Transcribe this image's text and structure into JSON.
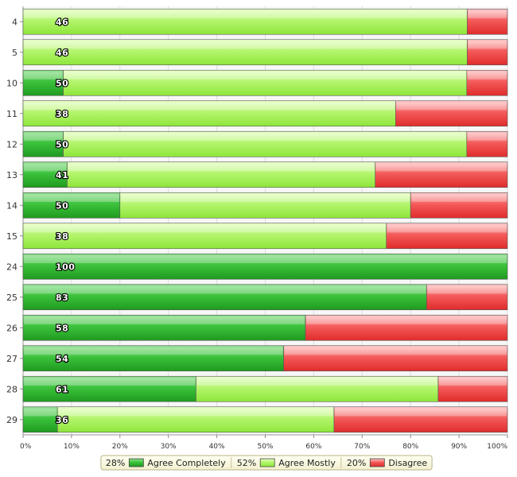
{
  "chart_data": {
    "type": "bar",
    "orientation": "horizontal",
    "stacked": true,
    "categories": [
      "4",
      "5",
      "10",
      "11",
      "12",
      "13",
      "14",
      "15",
      "24",
      "25",
      "26",
      "27",
      "28",
      "29"
    ],
    "series": [
      {
        "name": "Agree Completely",
        "color": "#2fb52f",
        "values": [
          0,
          0,
          8.3,
          0,
          8.3,
          9.1,
          20,
          0,
          100,
          83.3,
          58.3,
          53.8,
          35.7,
          7.1
        ]
      },
      {
        "name": "Agree Mostly",
        "color": "#a4f060",
        "values": [
          91.7,
          91.7,
          83.3,
          76.9,
          83.3,
          63.6,
          60,
          75,
          0,
          0,
          0,
          0,
          50,
          57.1
        ]
      },
      {
        "name": "Disagree",
        "color": "#f24a4a",
        "values": [
          8.3,
          8.3,
          8.4,
          23.1,
          8.4,
          27.3,
          20,
          25,
          0,
          16.7,
          41.7,
          46.2,
          14.3,
          35.8
        ]
      }
    ],
    "data_labels": [
      "46",
      "46",
      "50",
      "38",
      "50",
      "41",
      "50",
      "38",
      "100",
      "83",
      "58",
      "54",
      "61",
      "36"
    ],
    "xlim": [
      0,
      100
    ],
    "xticks": [
      "0%",
      "10%",
      "20%",
      "30%",
      "40%",
      "50%",
      "60%",
      "70%",
      "80%",
      "90%",
      "100%"
    ],
    "grid": true,
    "legend": {
      "placement": "bottom-center",
      "items": [
        {
          "percent": "28%",
          "label": "Agree Completely"
        },
        {
          "percent": "52%",
          "label": "Agree Mostly"
        },
        {
          "percent": "20%",
          "label": "Disagree"
        }
      ]
    }
  }
}
